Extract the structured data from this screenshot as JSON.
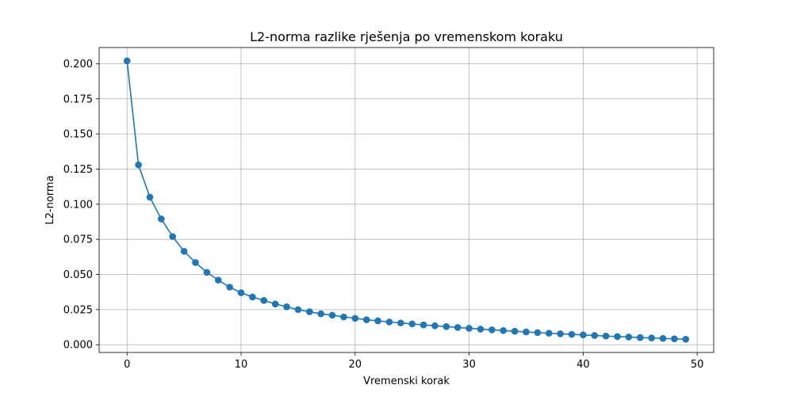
{
  "chart_data": {
    "type": "line",
    "title": "L2-norma razlike rješenja po vremenskom koraku",
    "xlabel": "Vremenski korak",
    "ylabel": "L2-norma",
    "xlim": [
      -2.45,
      51.45
    ],
    "ylim": [
      -0.0055,
      0.2115
    ],
    "xticks": [
      0,
      10,
      20,
      30,
      40,
      50
    ],
    "xtick_labels": [
      "0",
      "10",
      "20",
      "30",
      "40",
      "50"
    ],
    "yticks": [
      0.0,
      0.025,
      0.05,
      0.075,
      0.1,
      0.125,
      0.15,
      0.175,
      0.2
    ],
    "ytick_labels": [
      "0.000",
      "0.025",
      "0.050",
      "0.075",
      "0.100",
      "0.125",
      "0.150",
      "0.175",
      "0.200"
    ],
    "grid": true,
    "series": [
      {
        "color": "#1f77b4",
        "marker": "circle",
        "x": [
          0,
          1,
          2,
          3,
          4,
          5,
          6,
          7,
          8,
          9,
          10,
          11,
          12,
          13,
          14,
          15,
          16,
          17,
          18,
          19,
          20,
          21,
          22,
          23,
          24,
          25,
          26,
          27,
          28,
          29,
          30,
          31,
          32,
          33,
          34,
          35,
          36,
          37,
          38,
          39,
          40,
          41,
          42,
          43,
          44,
          45,
          46,
          47,
          48,
          49
        ],
        "y": [
          0.202,
          0.128,
          0.105,
          0.0895,
          0.077,
          0.0665,
          0.0585,
          0.0515,
          0.046,
          0.041,
          0.037,
          0.034,
          0.0315,
          0.029,
          0.027,
          0.025,
          0.0235,
          0.022,
          0.021,
          0.0198,
          0.0188,
          0.0178,
          0.017,
          0.0162,
          0.0155,
          0.0148,
          0.0141,
          0.0135,
          0.0129,
          0.0123,
          0.0117,
          0.0111,
          0.0106,
          0.0101,
          0.0096,
          0.0091,
          0.0086,
          0.0082,
          0.0078,
          0.0074,
          0.007,
          0.0066,
          0.0062,
          0.0058,
          0.0055,
          0.0051,
          0.0048,
          0.0045,
          0.0042,
          0.0039
        ]
      }
    ]
  }
}
